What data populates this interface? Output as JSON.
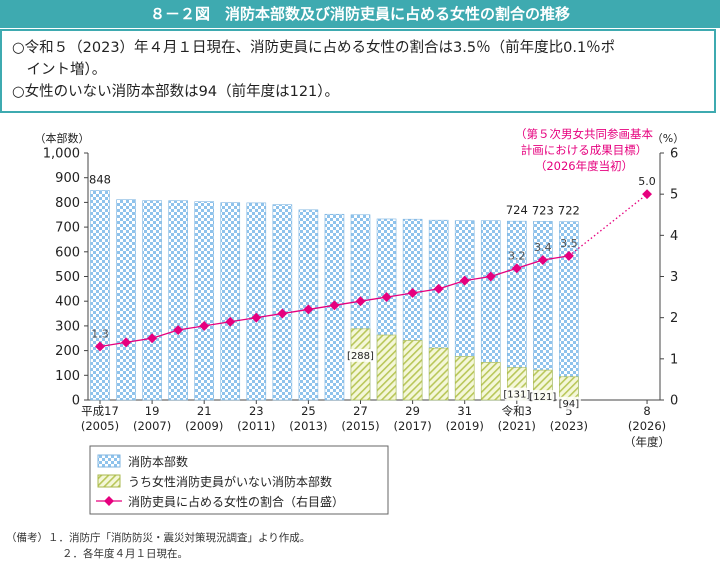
{
  "header": {
    "title": "８－２図　消防本部数及び消防吏員に占める女性の割合の推移"
  },
  "summary": {
    "line1": "○令和５（2023）年４月１日現在、消防吏員に占める女性の割合は3.5％（前年度比0.1％ポ",
    "line2": "　イント増）。",
    "line3": "○女性のいない消防本部数は94（前年度は121）。"
  },
  "chart_data": {
    "type": "bar",
    "left_axis_title": "（本部数）",
    "right_axis_title": "（%）",
    "left_ticks": [
      "1,000",
      "900",
      "800",
      "700",
      "600",
      "500",
      "400",
      "300",
      "200",
      "100",
      "0"
    ],
    "right_ticks": [
      "6",
      "5",
      "4",
      "3",
      "2",
      "1",
      "0"
    ],
    "ylim_left": [
      0,
      1000
    ],
    "ylim_right": [
      0,
      6
    ],
    "x_labels": [
      {
        "year": 2005,
        "line1": "平成17",
        "line2": "(2005)"
      },
      {
        "year": 2007,
        "line1": "19",
        "line2": "(2007)"
      },
      {
        "year": 2009,
        "line1": "21",
        "line2": "(2009)"
      },
      {
        "year": 2011,
        "line1": "23",
        "line2": "(2011)"
      },
      {
        "year": 2013,
        "line1": "25",
        "line2": "(2013)"
      },
      {
        "year": 2015,
        "line1": "27",
        "line2": "(2015)"
      },
      {
        "year": 2017,
        "line1": "29",
        "line2": "(2017)"
      },
      {
        "year": 2019,
        "line1": "31",
        "line2": "(2019)"
      },
      {
        "year": 2021,
        "line1": "令和3",
        "line2": "(2021)"
      },
      {
        "year": 2023,
        "line1": "5",
        "line2": "(2023)"
      },
      {
        "year": 2026,
        "line1": "8",
        "line2": "(2026)"
      }
    ],
    "x_unit": "（年度）",
    "years": [
      2005,
      2006,
      2007,
      2008,
      2009,
      2010,
      2011,
      2012,
      2013,
      2014,
      2015,
      2016,
      2017,
      2018,
      2019,
      2020,
      2021,
      2022,
      2023
    ],
    "series": [
      {
        "name": "消防本部数",
        "color": "#9ecbef",
        "values": [
          848,
          811,
          807,
          807,
          803,
          799,
          798,
          791,
          770,
          752,
          750,
          733,
          732,
          728,
          726,
          726,
          724,
          723,
          722
        ]
      },
      {
        "name": "うち女性消防吏員がいない消防本部数",
        "color": "#dfe8a4",
        "values": [
          null,
          null,
          null,
          null,
          null,
          null,
          null,
          null,
          null,
          null,
          288,
          263,
          241,
          210,
          176,
          152,
          131,
          121,
          94
        ]
      },
      {
        "name": "消防吏員に占める女性の割合（右目盛）",
        "color": "#e6007e",
        "values": [
          1.3,
          1.4,
          1.5,
          1.7,
          1.8,
          1.9,
          2.0,
          2.1,
          2.2,
          2.3,
          2.4,
          2.5,
          2.6,
          2.7,
          2.9,
          3.0,
          3.2,
          3.4,
          3.5
        ]
      }
    ],
    "bar_labels": [
      {
        "year": 2005,
        "text": "848"
      },
      {
        "year": 2021,
        "text": "724"
      },
      {
        "year": 2022,
        "text": "723"
      },
      {
        "year": 2023,
        "text": "722"
      }
    ],
    "inner_labels": [
      {
        "year": 2015,
        "text": "[288]"
      },
      {
        "year": 2021,
        "text": "[131]"
      },
      {
        "year": 2022,
        "text": "[121]"
      },
      {
        "year": 2023,
        "text": "[94]"
      }
    ],
    "line_labels": [
      {
        "year": 2005,
        "text": "1.3"
      },
      {
        "year": 2021,
        "text": "3.2"
      },
      {
        "year": 2022,
        "text": "3.4"
      },
      {
        "year": 2023,
        "text": "3.5"
      }
    ],
    "target": {
      "year": 2026,
      "value": 5.0,
      "label": "5.0",
      "annotation": [
        "（第５次男女共同参画基本",
        "計画における成果目標）",
        "（2026年度当初）"
      ]
    },
    "legend": [
      "消防本部数",
      "うち女性消防吏員がいない消防本部数",
      "消防吏員に占める女性の割合（右目盛）"
    ]
  },
  "notes": {
    "row1": "（備考）１．消防庁「消防防災・震災対策現況調査」より作成。",
    "row2": "２．各年度４月１日現在。"
  }
}
